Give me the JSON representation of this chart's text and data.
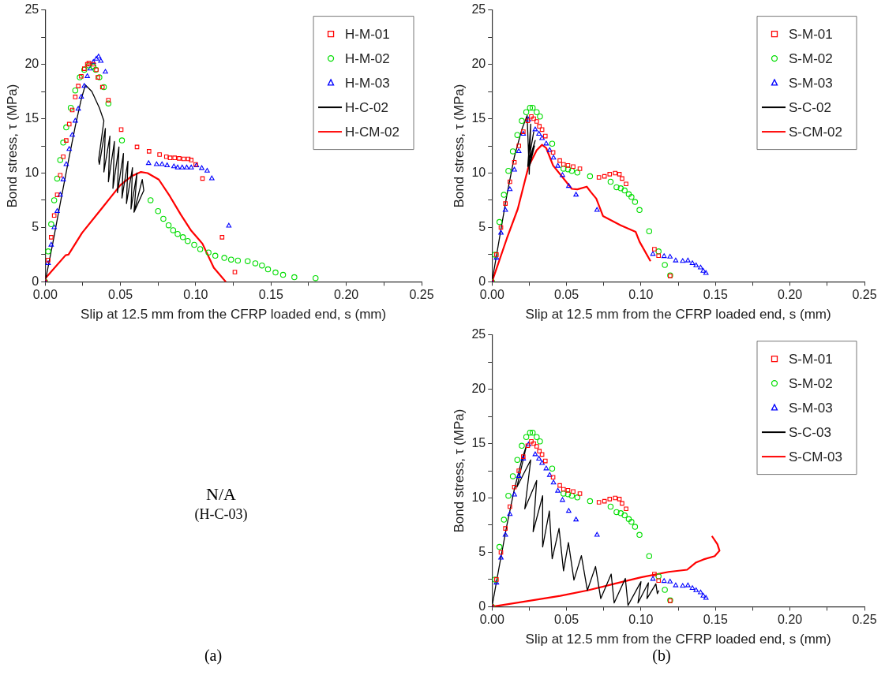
{
  "chart_data": [
    {
      "type": "scatter",
      "xlabel": "Slip at 12.5 mm from the CFRP loaded end, s (mm)",
      "ylabel": "Bond stress, τ (MPa)",
      "xlim": [
        0,
        0.25
      ],
      "ylim": [
        0,
        25
      ],
      "xticks": [
        {
          "value": 0,
          "label": "0.00"
        },
        {
          "value": 0.025,
          "label": null
        },
        {
          "value": 0.05,
          "label": "0.05"
        },
        {
          "value": 0.075,
          "label": null
        },
        {
          "value": 0.1,
          "label": "0.10"
        },
        {
          "value": 0.125,
          "label": null
        },
        {
          "value": 0.15,
          "label": "0.15"
        },
        {
          "value": 0.175,
          "label": null
        },
        {
          "value": 0.2,
          "label": "0.20"
        },
        {
          "value": 0.225,
          "label": null
        },
        {
          "value": 0.25,
          "label": "0.25"
        }
      ],
      "yticks": [
        0,
        {
          "value": 2.5,
          "label": null
        },
        5,
        {
          "value": 7.5,
          "label": null
        },
        10,
        {
          "value": 12.5,
          "label": null
        },
        15,
        {
          "value": 17.5,
          "label": null
        },
        20,
        {
          "value": 22.5,
          "label": null
        },
        25
      ],
      "legend": "top right",
      "series": [
        {
          "name": "H-M-01",
          "type": "scatter",
          "marker": "square",
          "color": "#ff0000",
          "x": [
            0,
            0.002,
            0.004,
            0.006,
            0.008,
            0.01,
            0.012,
            0.014,
            0.016,
            0.018,
            0.02,
            0.022,
            0.024,
            0.026,
            0.028,
            0.029,
            0.032,
            0.034,
            0.035,
            0.038,
            0.042,
            0.0505,
            0.061,
            0.069,
            0.076,
            0.0805,
            0.083,
            0.086,
            0.089,
            0.092,
            0.095,
            0.097,
            0.1,
            0.1045,
            0.1175,
            0.126
          ],
          "values": [
            0,
            2,
            4.1,
            6.1,
            8,
            9.8,
            11.5,
            13,
            14.5,
            15.8,
            17,
            18,
            18.9,
            19.6,
            20,
            20.1,
            20,
            19.5,
            18.8,
            17.9,
            16.7,
            14,
            12.4,
            12,
            11.7,
            11.5,
            11.4,
            11.4,
            11.35,
            11.3,
            11.3,
            11.2,
            10.8,
            9.5,
            4.1,
            0.9
          ]
        },
        {
          "name": "H-M-02",
          "type": "scatter",
          "marker": "circle",
          "color": "#00dd00",
          "x": [
            0,
            0.002,
            0.004,
            0.006,
            0.008,
            0.01,
            0.012,
            0.014,
            0.017,
            0.02,
            0.023,
            0.026,
            0.029,
            0.032,
            0.0336,
            0.036,
            0.039,
            0.042,
            0.051,
            0.07,
            0.075,
            0.0785,
            0.082,
            0.085,
            0.088,
            0.0915,
            0.0947,
            0.099,
            0.103,
            0.1085,
            0.113,
            0.119,
            0.1235,
            0.128,
            0.1345,
            0.1396,
            0.144,
            0.148,
            0.153,
            0.158,
            0.1655,
            0.1796
          ],
          "values": [
            0,
            2.8,
            5.3,
            7.5,
            9.5,
            11.2,
            12.8,
            14.2,
            16,
            17.6,
            18.8,
            19.5,
            19.9,
            19.8,
            19.5,
            18.8,
            17.9,
            16.4,
            13,
            7.5,
            6.5,
            5.8,
            5.2,
            4.75,
            4.4,
            4.1,
            3.75,
            3.4,
            3,
            2.7,
            2.4,
            2.2,
            2.05,
            1.95,
            1.9,
            1.7,
            1.5,
            1.15,
            0.86,
            0.64,
            0.42,
            0.34
          ]
        },
        {
          "name": "H-M-03",
          "type": "scatter",
          "marker": "triangle",
          "color": "#0000ff",
          "x": [
            0,
            0.002,
            0.004,
            0.006,
            0.008,
            0.01,
            0.012,
            0.014,
            0.016,
            0.018,
            0.02,
            0.022,
            0.024,
            0.026,
            0.028,
            0.03,
            0.032,
            0.034,
            0.0355,
            0.037,
            0.04,
            0.0687,
            0.074,
            0.0776,
            0.081,
            0.0855,
            0.088,
            0.091,
            0.094,
            0.097,
            0.1005,
            0.104,
            0.1076,
            0.1107,
            0.122
          ],
          "values": [
            0,
            1.7,
            3.4,
            5,
            6.5,
            8,
            9.4,
            10.8,
            12.2,
            13.5,
            14.8,
            15.9,
            17,
            18,
            18.9,
            19.6,
            20.2,
            20.5,
            20.7,
            20.3,
            19.3,
            10.9,
            10.8,
            10.8,
            10.7,
            10.6,
            10.5,
            10.5,
            10.5,
            10.5,
            10.7,
            10.45,
            10.2,
            9.5,
            5.15
          ]
        },
        {
          "name": "H-C-02",
          "type": "line",
          "color": "#000000",
          "x": [
            0,
            0.005,
            0.01,
            0.015,
            0.02,
            0.024,
            0.0267,
            0.031,
            0.036,
            0.039,
            0.0355,
            0.036,
            0.04,
            0.039,
            0.043,
            0.042,
            0.046,
            0.045,
            0.049,
            0.048,
            0.052,
            0.051,
            0.055,
            0.054,
            0.058,
            0.057,
            0.061,
            0.059,
            0.0645,
            0.0655,
            0.059
          ],
          "values": [
            0,
            3.5,
            7.2,
            10.8,
            14.3,
            16.8,
            18.1,
            17.5,
            16,
            14.8,
            11.2,
            10.8,
            14.1,
            10.1,
            13.4,
            9.2,
            12.9,
            8.6,
            12.4,
            8.2,
            11.8,
            7.7,
            11.1,
            7.2,
            10.5,
            6.7,
            10,
            6.4,
            9.4,
            8.4,
            6.4
          ]
        },
        {
          "name": "H-CM-02",
          "type": "line",
          "color": "#ff0000",
          "x": [
            0,
            0.0136,
            0.0155,
            0.0245,
            0.0373,
            0.05,
            0.0573,
            0.0636,
            0.068,
            0.0755,
            0.0827,
            0.09,
            0.097,
            0.1045,
            0.112,
            0.12
          ],
          "values": [
            0.3,
            2.45,
            2.5,
            4.5,
            6.7,
            8.9,
            9.7,
            10.1,
            10,
            9.4,
            7.9,
            6.2,
            4.7,
            3.5,
            1.3,
            0
          ]
        }
      ]
    },
    {
      "type": "scatter",
      "xlabel": "Slip at 12.5 mm from the CFRP loaded end, s (mm)",
      "ylabel": "Bond stress, τ (MPa)",
      "xlim": [
        0,
        0.25
      ],
      "ylim": [
        0,
        25
      ],
      "xticks": [
        {
          "value": 0,
          "label": "0.00"
        },
        {
          "value": 0.025,
          "label": null
        },
        {
          "value": 0.05,
          "label": "0.05"
        },
        {
          "value": 0.075,
          "label": null
        },
        {
          "value": 0.1,
          "label": "0.10"
        },
        {
          "value": 0.125,
          "label": null
        },
        {
          "value": 0.15,
          "label": "0.15"
        },
        {
          "value": 0.175,
          "label": null
        },
        {
          "value": 0.2,
          "label": "0.20"
        },
        {
          "value": 0.225,
          "label": null
        },
        {
          "value": 0.25,
          "label": "0.25"
        }
      ],
      "yticks": [
        0,
        {
          "value": 2.5,
          "label": null
        },
        5,
        {
          "value": 7.5,
          "label": null
        },
        10,
        {
          "value": 12.5,
          "label": null
        },
        15,
        {
          "value": 17.5,
          "label": null
        },
        20,
        {
          "value": 22.5,
          "label": null
        },
        25
      ],
      "legend": "top right",
      "series": [
        {
          "name": "S-M-01",
          "type": "scatter",
          "marker": "square",
          "color": "#ff0000",
          "x": [
            0,
            0.003,
            0.006,
            0.009,
            0.012,
            0.015,
            0.018,
            0.021,
            0.024,
            0.0264,
            0.028,
            0.03,
            0.0318,
            0.0336,
            0.0358,
            0.041,
            0.0455,
            0.048,
            0.051,
            0.0545,
            0.059,
            0.0718,
            0.0755,
            0.079,
            0.0827,
            0.0855,
            0.0873,
            0.09,
            0.109,
            0.1118,
            0.1196
          ],
          "values": [
            0,
            2.5,
            5,
            7.2,
            9.2,
            11,
            12.5,
            13.8,
            14.8,
            15.2,
            15,
            14.75,
            14.3,
            14,
            13.4,
            11.9,
            11.15,
            10.8,
            10.7,
            10.6,
            10.4,
            9.6,
            9.7,
            9.9,
            10,
            9.9,
            9.5,
            9,
            3,
            2.4,
            0.55
          ]
        },
        {
          "name": "S-M-02",
          "type": "scatter",
          "marker": "circle",
          "color": "#00dd00",
          "x": [
            0,
            0.002,
            0.005,
            0.008,
            0.011,
            0.014,
            0.017,
            0.02,
            0.023,
            0.0255,
            0.0273,
            0.03,
            0.0322,
            0.0404,
            0.048,
            0.051,
            0.0536,
            0.0573,
            0.0658,
            0.0796,
            0.0836,
            0.0864,
            0.089,
            0.0918,
            0.0936,
            0.096,
            0.099,
            0.1055,
            0.1118,
            0.116,
            0.1196
          ],
          "values": [
            0,
            2.5,
            5.5,
            8,
            10.2,
            12,
            13.5,
            14.8,
            15.6,
            16,
            16,
            15.6,
            15.2,
            12.7,
            10.4,
            10.35,
            10.2,
            10.05,
            9.7,
            9.2,
            8.7,
            8.6,
            8.4,
            8.05,
            7.8,
            7.35,
            6.6,
            4.65,
            2.8,
            1.55,
            0.6
          ]
        },
        {
          "name": "S-M-03",
          "type": "scatter",
          "marker": "triangle",
          "color": "#0000ff",
          "x": [
            0,
            0.003,
            0.006,
            0.009,
            0.012,
            0.015,
            0.018,
            0.021,
            0.0245,
            0.029,
            0.0315,
            0.0336,
            0.0364,
            0.0387,
            0.0413,
            0.0442,
            0.0473,
            0.0515,
            0.0564,
            0.0705,
            0.108,
            0.1155,
            0.1195,
            0.1233,
            0.128,
            0.1315,
            0.1345,
            0.137,
            0.14,
            0.1418,
            0.1436
          ],
          "values": [
            0,
            2.2,
            4.5,
            6.6,
            8.5,
            10.3,
            12,
            13.6,
            14.9,
            14,
            13.6,
            13.2,
            12.7,
            12.1,
            11.4,
            10.65,
            9.8,
            8.8,
            8,
            6.6,
            2.55,
            2.35,
            2.3,
            1.95,
            1.9,
            1.95,
            1.7,
            1.5,
            1.3,
            1,
            0.8
          ]
        },
        {
          "name": "S-C-02",
          "type": "line",
          "color": "#000000",
          "x": [
            0,
            0.005,
            0.01,
            0.015,
            0.02,
            0.0236,
            0.025,
            0.026,
            0.024,
            0.028,
            0.0245,
            0.029,
            0.026,
            0.0285,
            0.025,
            0.027
          ],
          "values": [
            0,
            4,
            8,
            11.5,
            14,
            15.3,
            9.9,
            14.5,
            10.6,
            13.8,
            11,
            13,
            11.5,
            12.5,
            10.5,
            12
          ]
        },
        {
          "name": "S-CM-02",
          "type": "line",
          "color": "#ff0000",
          "x": [
            0,
            0.01,
            0.0173,
            0.0245,
            0.03,
            0.0336,
            0.0364,
            0.041,
            0.0536,
            0.0573,
            0.0636,
            0.0664,
            0.07,
            0.0745,
            0.0864,
            0.0964,
            0.099,
            0.1064
          ],
          "values": [
            0,
            4,
            6.7,
            10.6,
            12.1,
            12.6,
            12.3,
            10.7,
            8.55,
            8.5,
            8.75,
            8.25,
            7.65,
            6.05,
            5.2,
            4.6,
            3.7,
            1.9
          ]
        }
      ]
    },
    {
      "type": "other",
      "title": "N/A",
      "subtitle": "(H-C-03)",
      "annotations": [
        "(a)"
      ]
    },
    {
      "type": "scatter",
      "xlabel": "Slip at 12.5 mm from the CFRP loaded end, s (mm)",
      "ylabel": "Bond stress, τ (MPa)",
      "xlim": [
        0,
        0.25
      ],
      "ylim": [
        0,
        25
      ],
      "xticks": [
        {
          "value": 0,
          "label": "0.00"
        },
        {
          "value": 0.025,
          "label": null
        },
        {
          "value": 0.05,
          "label": "0.05"
        },
        {
          "value": 0.075,
          "label": null
        },
        {
          "value": 0.1,
          "label": "0.10"
        },
        {
          "value": 0.125,
          "label": null
        },
        {
          "value": 0.15,
          "label": "0.15"
        },
        {
          "value": 0.175,
          "label": null
        },
        {
          "value": 0.2,
          "label": "0.20"
        },
        {
          "value": 0.225,
          "label": null
        },
        {
          "value": 0.25,
          "label": "0.25"
        }
      ],
      "yticks": [
        0,
        {
          "value": 2.5,
          "label": null
        },
        5,
        {
          "value": 7.5,
          "label": null
        },
        10,
        {
          "value": 12.5,
          "label": null
        },
        15,
        {
          "value": 17.5,
          "label": null
        },
        20,
        {
          "value": 22.5,
          "label": null
        },
        25
      ],
      "legend": "top right",
      "annotations": [
        "(b)"
      ],
      "series": [
        {
          "name": "S-M-01",
          "type": "scatter",
          "marker": "square",
          "color": "#ff0000",
          "x": [
            0,
            0.003,
            0.006,
            0.009,
            0.012,
            0.015,
            0.018,
            0.021,
            0.024,
            0.0264,
            0.028,
            0.03,
            0.0318,
            0.0336,
            0.0358,
            0.041,
            0.0455,
            0.048,
            0.051,
            0.0545,
            0.059,
            0.0718,
            0.0755,
            0.079,
            0.0827,
            0.0855,
            0.0873,
            0.09,
            0.109,
            0.1118,
            0.1196
          ],
          "values": [
            0,
            2.5,
            5,
            7.2,
            9.2,
            11,
            12.5,
            13.8,
            14.8,
            15.2,
            15,
            14.75,
            14.3,
            14,
            13.4,
            11.9,
            11.15,
            10.8,
            10.7,
            10.6,
            10.4,
            9.6,
            9.7,
            9.9,
            10,
            9.9,
            9.5,
            9,
            3,
            2.4,
            0.55
          ]
        },
        {
          "name": "S-M-02",
          "type": "scatter",
          "marker": "circle",
          "color": "#00dd00",
          "x": [
            0,
            0.002,
            0.005,
            0.008,
            0.011,
            0.014,
            0.017,
            0.02,
            0.023,
            0.0255,
            0.0273,
            0.03,
            0.0322,
            0.0404,
            0.048,
            0.051,
            0.0536,
            0.0573,
            0.0658,
            0.0796,
            0.0836,
            0.0864,
            0.089,
            0.0918,
            0.0936,
            0.096,
            0.099,
            0.1055,
            0.1118,
            0.116,
            0.1196
          ],
          "values": [
            0,
            2.5,
            5.5,
            8,
            10.2,
            12,
            13.5,
            14.8,
            15.6,
            16,
            16,
            15.6,
            15.2,
            12.7,
            10.4,
            10.35,
            10.2,
            10.05,
            9.7,
            9.2,
            8.7,
            8.6,
            8.4,
            8.05,
            7.8,
            7.35,
            6.6,
            4.65,
            2.8,
            1.55,
            0.6
          ]
        },
        {
          "name": "S-M-03",
          "type": "scatter",
          "marker": "triangle",
          "color": "#0000ff",
          "x": [
            0,
            0.003,
            0.006,
            0.009,
            0.012,
            0.015,
            0.018,
            0.021,
            0.0245,
            0.029,
            0.0315,
            0.0336,
            0.0364,
            0.0387,
            0.0413,
            0.0442,
            0.0473,
            0.0515,
            0.0564,
            0.0705,
            0.108,
            0.1155,
            0.1195,
            0.1233,
            0.128,
            0.1315,
            0.1345,
            0.137,
            0.14,
            0.1418,
            0.1436
          ],
          "values": [
            0,
            2.2,
            4.5,
            6.6,
            8.5,
            10.3,
            12,
            13.6,
            14.9,
            14,
            13.6,
            13.2,
            12.7,
            12.1,
            11.4,
            10.65,
            9.8,
            8.8,
            8,
            6.6,
            2.55,
            2.35,
            2.3,
            1.95,
            1.9,
            1.95,
            1.7,
            1.5,
            1.3,
            1,
            0.8
          ]
        },
        {
          "name": "S-C-03",
          "type": "line",
          "color": "#000000",
          "x": [
            0,
            0.005,
            0.01,
            0.015,
            0.02,
            0.0231,
            0.0167,
            0.026,
            0.022,
            0.03,
            0.0276,
            0.034,
            0.034,
            0.0385,
            0.0404,
            0.045,
            0.048,
            0.0513,
            0.055,
            0.06,
            0.064,
            0.0695,
            0.073,
            0.08,
            0.082,
            0.0895,
            0.0913,
            0.1,
            0.098,
            0.105,
            0.104,
            0.11,
            0.111,
            0.112
          ],
          "values": [
            0,
            3.8,
            7.5,
            10.8,
            13.5,
            14.8,
            11,
            13.5,
            9,
            11.6,
            6.9,
            10.2,
            5.5,
            8.8,
            4.4,
            7.2,
            3.3,
            5.9,
            2.45,
            4.7,
            1.5,
            3.7,
            0.75,
            3,
            0.35,
            2.6,
            0.12,
            2.3,
            0.35,
            2.2,
            0.75,
            2.1,
            1.2,
            1.5
          ]
        },
        {
          "name": "S-CM-03",
          "type": "line",
          "color": "#ff0000",
          "x": [
            0,
            0.0276,
            0.0458,
            0.064,
            0.082,
            0.1,
            0.1185,
            0.131,
            0.1367,
            0.142,
            0.1495,
            0.1527,
            0.1513,
            0.1476
          ],
          "values": [
            0,
            0.6,
            1,
            1.5,
            2.1,
            2.7,
            3.2,
            3.4,
            4.05,
            4.35,
            4.65,
            5.15,
            5.75,
            6.5
          ]
        }
      ]
    }
  ]
}
